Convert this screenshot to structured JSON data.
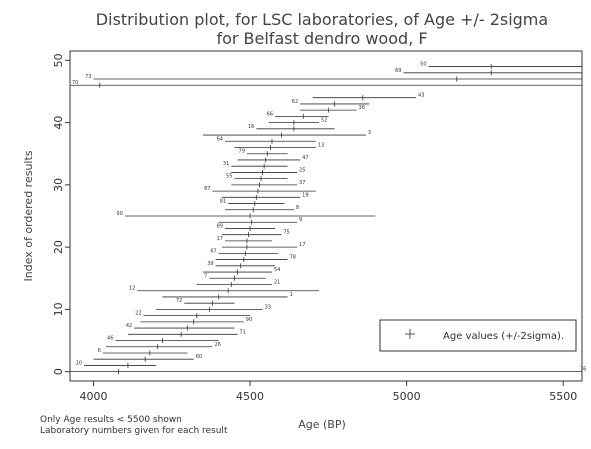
{
  "chart_data": {
    "type": "scatter",
    "title_line1": "Distribution plot, for LSC laboratories, of Age +/- 2sigma",
    "title_line2": "for Belfast dendro wood, F",
    "xlabel": "Age (BP)",
    "ylabel": "Index of ordered results",
    "xlim": [
      3925,
      5560
    ],
    "ylim": [
      -1.5,
      51.5
    ],
    "xticks": [
      4000,
      4500,
      5000,
      5500
    ],
    "yticks": [
      0,
      10,
      20,
      30,
      40,
      50
    ],
    "legend": {
      "label": "Age values (+/-2sigma).",
      "placement": "bottom-right"
    },
    "notes": [
      "Only Age results < 5500 shown",
      "Laboratory numbers given for each result"
    ],
    "series": [
      {
        "points": [
          {
            "y": 0,
            "age": 4080,
            "lo": 3920,
            "hi": 5560,
            "lab": "76",
            "side": "right"
          },
          {
            "y": 1,
            "age": 4110,
            "lo": 3970,
            "hi": 4200,
            "lab": "10",
            "side": "left"
          },
          {
            "y": 2,
            "age": 4165,
            "lo": 4000,
            "hi": 4320,
            "lab": "60",
            "side": "right"
          },
          {
            "y": 3,
            "age": 4180,
            "lo": 4030,
            "hi": 4300,
            "lab": "6",
            "side": "left"
          },
          {
            "y": 4,
            "age": 4205,
            "lo": 4040,
            "hi": 4380,
            "lab": "26",
            "side": "right"
          },
          {
            "y": 5,
            "age": 4220,
            "lo": 4070,
            "hi": 4400,
            "lab": "46",
            "side": "left"
          },
          {
            "y": 6,
            "age": 4280,
            "lo": 4110,
            "hi": 4460,
            "lab": "71",
            "side": "right"
          },
          {
            "y": 7,
            "age": 4300,
            "lo": 4130,
            "hi": 4450,
            "lab": "42",
            "side": "left"
          },
          {
            "y": 8,
            "age": 4320,
            "lo": 4150,
            "hi": 4480,
            "lab": "90",
            "side": "right"
          },
          {
            "y": 9,
            "age": 4330,
            "lo": 4160,
            "hi": 4500,
            "lab": "22",
            "side": "left"
          },
          {
            "y": 10,
            "age": 4370,
            "lo": 4200,
            "hi": 4540,
            "lab": "33",
            "side": "right"
          },
          {
            "y": 11,
            "age": 4380,
            "lo": 4290,
            "hi": 4450,
            "lab": "72",
            "side": "left"
          },
          {
            "y": 12,
            "age": 4400,
            "lo": 4220,
            "hi": 4620,
            "lab": "1",
            "side": "right"
          },
          {
            "y": 13,
            "age": 4430,
            "lo": 4140,
            "hi": 4720,
            "lab": "12",
            "side": "left"
          },
          {
            "y": 14,
            "age": 4440,
            "lo": 4330,
            "hi": 4570,
            "lab": "21",
            "side": "right"
          },
          {
            "y": 15,
            "age": 4450,
            "lo": 4370,
            "hi": 4550,
            "lab": "7",
            "side": "left"
          },
          {
            "y": 16,
            "age": 4460,
            "lo": 4350,
            "hi": 4570,
            "lab": "54",
            "side": "right"
          },
          {
            "y": 17,
            "age": 4470,
            "lo": 4390,
            "hi": 4580,
            "lab": "39",
            "side": "left"
          },
          {
            "y": 18,
            "age": 4480,
            "lo": 4390,
            "hi": 4620,
            "lab": "78",
            "side": "right"
          },
          {
            "y": 19,
            "age": 4485,
            "lo": 4400,
            "hi": 4590,
            "lab": "67",
            "side": "left"
          },
          {
            "y": 20,
            "age": 4490,
            "lo": 4410,
            "hi": 4650,
            "lab": "17",
            "side": "right"
          },
          {
            "y": 21,
            "age": 4490,
            "lo": 4420,
            "hi": 4570,
            "lab": "17",
            "side": "left"
          },
          {
            "y": 22,
            "age": 4495,
            "lo": 4410,
            "hi": 4600,
            "lab": "75",
            "side": "right"
          },
          {
            "y": 23,
            "age": 4500,
            "lo": 4420,
            "hi": 4580,
            "lab": "89",
            "side": "left"
          },
          {
            "y": 24,
            "age": 4505,
            "lo": 4400,
            "hi": 4650,
            "lab": "9",
            "side": "right"
          },
          {
            "y": 25,
            "age": 4500,
            "lo": 4100,
            "hi": 4900,
            "lab": "90",
            "side": "left"
          },
          {
            "y": 26,
            "age": 4510,
            "lo": 4420,
            "hi": 4640,
            "lab": "8",
            "side": "right"
          },
          {
            "y": 27,
            "age": 4515,
            "lo": 4430,
            "hi": 4610,
            "lab": "81",
            "side": "left"
          },
          {
            "y": 28,
            "age": 4520,
            "lo": 4410,
            "hi": 4660,
            "lab": "19",
            "side": "right"
          },
          {
            "y": 29,
            "age": 4525,
            "lo": 4380,
            "hi": 4710,
            "lab": "87",
            "side": "left"
          },
          {
            "y": 30,
            "age": 4530,
            "lo": 4440,
            "hi": 4650,
            "lab": "37",
            "side": "right"
          },
          {
            "y": 31,
            "age": 4535,
            "lo": 4450,
            "hi": 4620,
            "lab": "55",
            "side": "left"
          },
          {
            "y": 32,
            "age": 4540,
            "lo": 4440,
            "hi": 4650,
            "lab": "25",
            "side": "right"
          },
          {
            "y": 33,
            "age": 4545,
            "lo": 4440,
            "hi": 4620,
            "lab": "31",
            "side": "left"
          },
          {
            "y": 34,
            "age": 4550,
            "lo": 4460,
            "hi": 4660,
            "lab": "47",
            "side": "right"
          },
          {
            "y": 35,
            "age": 4555,
            "lo": 4490,
            "hi": 4620,
            "lab": "79",
            "side": "left"
          },
          {
            "y": 36,
            "age": 4565,
            "lo": 4450,
            "hi": 4710,
            "lab": "13",
            "side": "right"
          },
          {
            "y": 37,
            "age": 4570,
            "lo": 4420,
            "hi": 4710,
            "lab": "64",
            "side": "left"
          },
          {
            "y": 38,
            "age": 4600,
            "lo": 4350,
            "hi": 4870,
            "lab": "3",
            "side": "right"
          },
          {
            "y": 39,
            "age": 4640,
            "lo": 4520,
            "hi": 4770,
            "lab": "16",
            "side": "left"
          },
          {
            "y": 40,
            "age": 4640,
            "lo": 4560,
            "hi": 4720,
            "lab": "52",
            "side": "right"
          },
          {
            "y": 41,
            "age": 4670,
            "lo": 4580,
            "hi": 4750,
            "lab": "66",
            "side": "left"
          },
          {
            "y": 42,
            "age": 4750,
            "lo": 4660,
            "hi": 4840,
            "lab": "36",
            "side": "right"
          },
          {
            "y": 43,
            "age": 4770,
            "lo": 4660,
            "hi": 4880,
            "lab": "62",
            "side": "left"
          },
          {
            "y": 44,
            "age": 4860,
            "lo": 4700,
            "hi": 5030,
            "lab": "43",
            "side": "right"
          },
          {
            "y": 46,
            "age": 4020,
            "lo": 3920,
            "hi": 5560,
            "lab": "70",
            "side": "left"
          },
          {
            "y": 47,
            "age": 5160,
            "lo": 4000,
            "hi": 5560,
            "lab": "73",
            "side": "left"
          },
          {
            "y": 48,
            "age": 5270,
            "lo": 4990,
            "hi": 5560,
            "lab": "69",
            "side": "left"
          },
          {
            "y": 49,
            "age": 5270,
            "lo": 5070,
            "hi": 5560,
            "lab": "50",
            "side": "left"
          }
        ]
      }
    ]
  }
}
